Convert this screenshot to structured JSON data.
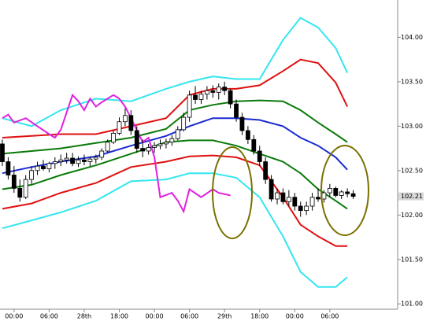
{
  "chart_data": {
    "type": "candlestick",
    "xlim": [
      -2.4,
      65.6
    ],
    "ylim": [
      100.94,
      104.42
    ],
    "xticks": [
      {
        "value": 0,
        "label": "00:00"
      },
      {
        "value": 6,
        "label": "06:00"
      },
      {
        "value": 12,
        "label": "28th"
      },
      {
        "value": 18,
        "label": "18:00"
      },
      {
        "value": 24,
        "label": "00:00"
      },
      {
        "value": 30,
        "label": "06:00"
      },
      {
        "value": 36,
        "label": "29th"
      },
      {
        "value": 42,
        "label": "18:00"
      },
      {
        "value": 48,
        "label": "00:00"
      },
      {
        "value": 54,
        "label": "06:00"
      }
    ],
    "yticks": [
      {
        "value": 101,
        "label": "101.00"
      },
      {
        "value": 101.5,
        "label": "101.50"
      },
      {
        "value": 102,
        "label": "102.00"
      },
      {
        "value": 102.5,
        "label": "102.50"
      },
      {
        "value": 103,
        "label": "103.00"
      },
      {
        "value": 103.5,
        "label": "103.50"
      },
      {
        "value": 104,
        "label": "104.00"
      }
    ],
    "last_price": {
      "value": 102.21,
      "label": "102.21"
    },
    "candles": {
      "x": [
        -2,
        -1,
        0,
        1,
        2,
        3,
        4,
        5,
        6,
        7,
        8,
        9,
        10,
        11,
        12,
        13,
        14,
        15,
        16,
        17,
        18,
        19,
        20,
        21,
        22,
        23,
        24,
        25,
        26,
        27,
        28,
        29,
        30,
        31,
        32,
        33,
        34,
        35,
        36,
        37,
        38,
        39,
        40,
        41,
        42,
        43,
        44,
        45,
        46,
        47,
        48,
        49,
        50,
        51,
        52,
        53,
        54,
        55,
        56,
        57,
        58
      ],
      "open": [
        102.8,
        102.6,
        102.45,
        102.3,
        102.2,
        102.4,
        102.5,
        102.55,
        102.52,
        102.58,
        102.6,
        102.62,
        102.64,
        102.58,
        102.62,
        102.6,
        102.63,
        102.65,
        102.72,
        102.82,
        102.92,
        103.05,
        103.12,
        102.95,
        102.75,
        102.72,
        102.76,
        102.78,
        102.8,
        102.82,
        102.86,
        102.96,
        103.1,
        103.35,
        103.3,
        103.36,
        103.4,
        103.38,
        103.44,
        103.4,
        103.25,
        103.1,
        102.95,
        102.85,
        102.72,
        102.6,
        102.4,
        102.18,
        102.25,
        102.15,
        102.2,
        102.1,
        102.05,
        102.1,
        102.2,
        102.18,
        102.25,
        102.3,
        102.22,
        102.26,
        102.24
      ],
      "high": [
        102.85,
        102.65,
        102.55,
        102.4,
        102.45,
        102.55,
        102.6,
        102.62,
        102.6,
        102.65,
        102.68,
        102.7,
        102.7,
        102.66,
        102.68,
        102.66,
        102.68,
        102.75,
        102.85,
        102.95,
        103.1,
        103.2,
        103.18,
        103.0,
        102.85,
        102.8,
        102.82,
        102.85,
        102.86,
        102.9,
        103.0,
        103.15,
        103.4,
        103.45,
        103.4,
        103.45,
        103.46,
        103.48,
        103.5,
        103.42,
        103.3,
        103.15,
        103.0,
        102.9,
        102.78,
        102.65,
        102.45,
        102.3,
        102.3,
        102.28,
        102.25,
        102.15,
        102.15,
        102.25,
        102.3,
        102.28,
        102.35,
        102.32,
        102.28,
        102.3,
        102.28
      ],
      "low": [
        102.55,
        102.4,
        102.25,
        102.15,
        102.18,
        102.35,
        102.45,
        102.5,
        102.48,
        102.52,
        102.55,
        102.58,
        102.55,
        102.54,
        102.56,
        102.55,
        102.58,
        102.62,
        102.7,
        102.8,
        102.9,
        103.0,
        102.9,
        102.7,
        102.65,
        102.68,
        102.7,
        102.74,
        102.75,
        102.78,
        102.84,
        102.94,
        103.05,
        103.25,
        103.25,
        103.3,
        103.32,
        103.3,
        103.35,
        103.2,
        103.05,
        102.9,
        102.8,
        102.68,
        102.55,
        102.35,
        102.15,
        102.12,
        102.12,
        102.1,
        102.05,
        101.98,
        102.0,
        102.05,
        102.15,
        102.14,
        102.2,
        102.2,
        102.18,
        102.2,
        102.18
      ],
      "close": [
        102.6,
        102.45,
        102.3,
        102.2,
        102.4,
        102.5,
        102.55,
        102.52,
        102.58,
        102.6,
        102.62,
        102.64,
        102.58,
        102.62,
        102.6,
        102.63,
        102.65,
        102.72,
        102.82,
        102.92,
        103.05,
        103.12,
        102.95,
        102.75,
        102.72,
        102.76,
        102.78,
        102.8,
        102.82,
        102.86,
        102.96,
        103.1,
        103.35,
        103.3,
        103.36,
        103.4,
        103.38,
        103.44,
        103.4,
        103.25,
        103.1,
        102.95,
        102.85,
        102.72,
        102.6,
        102.4,
        102.18,
        102.25,
        102.15,
        102.2,
        102.1,
        102.05,
        102.1,
        102.2,
        102.18,
        102.25,
        102.3,
        102.22,
        102.26,
        102.24,
        102.21
      ]
    },
    "series": [
      {
        "color": "#33e6f0",
        "x": [
          -2,
          3,
          8,
          14,
          20,
          26,
          30,
          34,
          38,
          42,
          46,
          49,
          52,
          55,
          57
        ],
        "values": [
          103.09,
          103.0,
          103.18,
          103.31,
          103.28,
          103.42,
          103.5,
          103.56,
          103.53,
          103.53,
          103.97,
          104.22,
          104.11,
          103.88,
          103.6
        ]
      },
      {
        "color": "#e01010",
        "x": [
          -2,
          3,
          8,
          14,
          20,
          26,
          30,
          34,
          38,
          42,
          46,
          49,
          52,
          55,
          57
        ],
        "values": [
          102.87,
          102.89,
          102.91,
          102.91,
          103.0,
          103.09,
          103.35,
          103.42,
          103.42,
          103.46,
          103.62,
          103.75,
          103.71,
          103.49,
          103.22
        ]
      },
      {
        "color": "#0a7a0a",
        "x": [
          -2,
          3,
          8,
          14,
          20,
          26,
          30,
          34,
          38,
          42,
          46,
          49,
          52,
          55,
          57
        ],
        "values": [
          102.69,
          102.72,
          102.75,
          102.81,
          102.87,
          102.97,
          103.18,
          103.24,
          103.28,
          103.29,
          103.28,
          103.18,
          103.04,
          102.91,
          102.82
        ]
      },
      {
        "color": "#1a2ad0",
        "x": [
          -2,
          3,
          8,
          14,
          20,
          26,
          30,
          34,
          38,
          42,
          46,
          49,
          52,
          55,
          57
        ],
        "values": [
          102.47,
          102.54,
          102.6,
          102.66,
          102.78,
          102.89,
          103.0,
          103.09,
          103.09,
          103.07,
          103.0,
          102.87,
          102.78,
          102.65,
          102.51
        ]
      },
      {
        "color": "#0a7a0a",
        "x": [
          -2,
          3,
          8,
          14,
          20,
          26,
          30,
          34,
          38,
          42,
          46,
          49,
          52,
          55,
          57
        ],
        "values": [
          102.29,
          102.34,
          102.45,
          102.56,
          102.69,
          102.82,
          102.84,
          102.84,
          102.78,
          102.69,
          102.6,
          102.47,
          102.29,
          102.16,
          102.07
        ]
      },
      {
        "color": "#e01010",
        "x": [
          -2,
          3,
          8,
          14,
          20,
          26,
          30,
          34,
          38,
          42,
          46,
          49,
          52,
          55,
          57
        ],
        "values": [
          102.07,
          102.13,
          102.25,
          102.36,
          102.54,
          102.6,
          102.66,
          102.67,
          102.65,
          102.56,
          102.2,
          101.89,
          101.76,
          101.65,
          101.65
        ]
      },
      {
        "color": "#33e6f0",
        "x": [
          -2,
          3,
          8,
          14,
          20,
          26,
          30,
          34,
          38,
          42,
          46,
          49,
          52,
          55,
          57
        ],
        "values": [
          101.85,
          101.94,
          102.03,
          102.16,
          102.38,
          102.4,
          102.47,
          102.47,
          102.42,
          102.2,
          101.76,
          101.36,
          101.19,
          101.19,
          101.3
        ]
      },
      {
        "color": "#e020e0",
        "x": [
          -2,
          -1,
          0,
          2,
          4,
          6,
          7,
          8,
          10,
          11,
          12,
          13,
          14,
          15,
          17,
          18,
          19,
          20,
          22,
          23,
          24,
          25,
          27,
          28,
          29,
          30,
          32,
          34,
          35,
          37
        ],
        "values": [
          103.09,
          103.13,
          103.04,
          103.09,
          103.0,
          102.91,
          102.87,
          102.96,
          103.35,
          103.28,
          103.18,
          103.31,
          103.22,
          103.27,
          103.35,
          103.31,
          103.22,
          103.09,
          102.82,
          102.87,
          102.65,
          102.2,
          102.25,
          102.16,
          102.04,
          102.29,
          102.2,
          102.29,
          102.25,
          102.22
        ]
      }
    ]
  }
}
